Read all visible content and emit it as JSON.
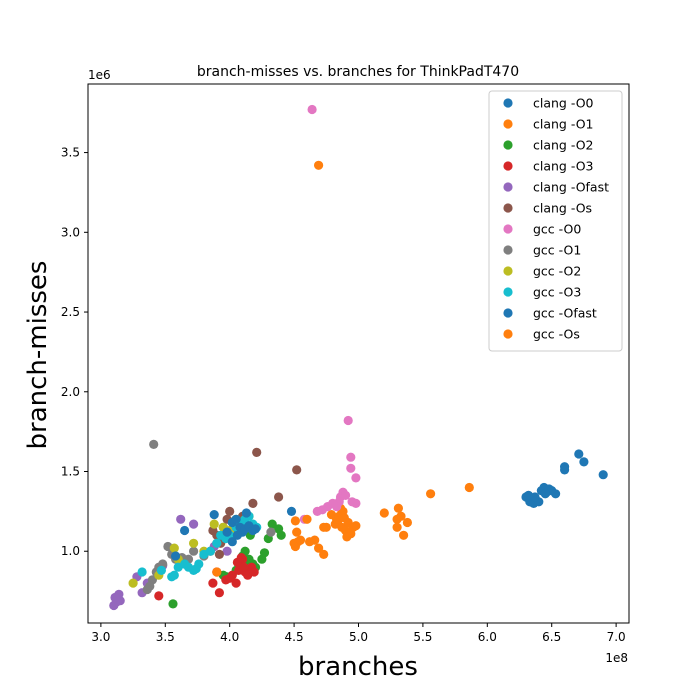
{
  "chart_data": {
    "type": "scatter",
    "title": "branch-misses vs. branches for ThinkPadT470",
    "xlabel": "branches",
    "ylabel": "branch-misses",
    "x_offset_label": "1e8",
    "y_offset_label": "1e6",
    "xlim": [
      2.9,
      7.1
    ],
    "ylim": [
      0.55,
      3.93
    ],
    "xticks": [
      3.0,
      3.5,
      4.0,
      4.5,
      5.0,
      5.5,
      6.0,
      6.5,
      7.0
    ],
    "xtick_labels": [
      "3.0",
      "3.5",
      "4.0",
      "4.5",
      "5.0",
      "5.5",
      "6.0",
      "6.5",
      "7.0"
    ],
    "yticks": [
      1.0,
      1.5,
      2.0,
      2.5,
      3.0,
      3.5
    ],
    "ytick_labels": [
      "1.0",
      "1.5",
      "2.0",
      "2.5",
      "3.0",
      "3.5"
    ],
    "grid": false,
    "legend_position": "top-right",
    "series": [
      {
        "name": "clang -O0",
        "color": "#1f77b4",
        "points": [
          [
            6.3,
            1.34
          ],
          [
            6.33,
            1.31
          ],
          [
            6.35,
            1.33
          ],
          [
            6.36,
            1.3
          ],
          [
            6.38,
            1.32
          ],
          [
            6.4,
            1.31
          ],
          [
            6.42,
            1.38
          ],
          [
            6.44,
            1.4
          ],
          [
            6.46,
            1.37
          ],
          [
            6.48,
            1.39
          ],
          [
            6.5,
            1.38
          ],
          [
            6.53,
            1.36
          ],
          [
            6.6,
            1.53
          ],
          [
            6.6,
            1.51
          ],
          [
            6.71,
            1.61
          ],
          [
            6.75,
            1.56
          ],
          [
            6.9,
            1.48
          ],
          [
            6.32,
            1.35
          ],
          [
            6.37,
            1.34
          ],
          [
            6.45,
            1.36
          ]
        ]
      },
      {
        "name": "clang -O1",
        "color": "#ff7f0e",
        "points": [
          [
            4.69,
            3.42
          ],
          [
            4.79,
            1.23
          ],
          [
            4.82,
            1.17
          ],
          [
            4.83,
            1.2
          ],
          [
            4.85,
            1.22
          ],
          [
            4.87,
            1.15
          ],
          [
            4.88,
            1.25
          ],
          [
            4.9,
            1.13
          ],
          [
            4.92,
            1.18
          ],
          [
            4.94,
            1.11
          ],
          [
            4.96,
            1.15
          ],
          [
            4.98,
            1.16
          ],
          [
            4.84,
            1.19
          ],
          [
            4.86,
            1.27
          ],
          [
            4.89,
            1.21
          ],
          [
            5.2,
            1.24
          ],
          [
            5.3,
            1.2
          ],
          [
            5.31,
            1.27
          ],
          [
            5.33,
            1.22
          ],
          [
            5.38,
            1.18
          ],
          [
            5.35,
            1.1
          ],
          [
            5.3,
            1.15
          ],
          [
            5.56,
            1.36
          ],
          [
            5.86,
            1.4
          ],
          [
            4.91,
            1.09
          ],
          [
            4.75,
            1.15
          ]
        ]
      },
      {
        "name": "clang -O2",
        "color": "#2ca02c",
        "points": [
          [
            3.56,
            0.67
          ],
          [
            3.95,
            0.85
          ],
          [
            3.98,
            0.84
          ],
          [
            4.05,
            0.88
          ],
          [
            4.1,
            0.97
          ],
          [
            4.13,
            0.93
          ],
          [
            4.15,
            0.95
          ],
          [
            4.18,
            0.92
          ],
          [
            4.2,
            0.9
          ],
          [
            4.25,
            0.95
          ],
          [
            4.27,
            0.99
          ],
          [
            4.3,
            1.08
          ],
          [
            4.33,
            1.17
          ],
          [
            4.38,
            1.14
          ],
          [
            4.4,
            1.1
          ],
          [
            4.12,
            1.0
          ],
          [
            4.08,
            0.9
          ],
          [
            4.16,
            1.1
          ]
        ]
      },
      {
        "name": "clang -O3",
        "color": "#d62728",
        "points": [
          [
            3.45,
            0.72
          ],
          [
            3.87,
            0.8
          ],
          [
            3.92,
            0.74
          ],
          [
            3.97,
            0.82
          ],
          [
            4.02,
            0.85
          ],
          [
            4.05,
            0.8
          ],
          [
            4.07,
            0.88
          ],
          [
            4.08,
            0.92
          ],
          [
            4.1,
            0.95
          ],
          [
            4.12,
            0.87
          ],
          [
            4.14,
            0.85
          ],
          [
            4.17,
            0.9
          ],
          [
            4.19,
            0.87
          ],
          [
            4.06,
            0.93
          ],
          [
            4.11,
            0.9
          ],
          [
            4.0,
            0.83
          ],
          [
            3.9,
            0.87
          ],
          [
            4.09,
            0.96
          ]
        ]
      },
      {
        "name": "clang -Ofast",
        "color": "#9467bd",
        "points": [
          [
            3.1,
            0.66
          ],
          [
            3.12,
            0.68
          ],
          [
            3.13,
            0.7
          ],
          [
            3.14,
            0.73
          ],
          [
            3.15,
            0.69
          ],
          [
            3.11,
            0.71
          ],
          [
            3.28,
            0.84
          ],
          [
            3.32,
            0.74
          ],
          [
            3.36,
            0.8
          ],
          [
            3.48,
            0.91
          ],
          [
            3.62,
            1.2
          ],
          [
            3.72,
            1.17
          ],
          [
            3.88,
            1.03
          ],
          [
            3.98,
            1.0
          ]
        ]
      },
      {
        "name": "clang -Os",
        "color": "#8c564b",
        "points": [
          [
            3.87,
            1.13
          ],
          [
            3.9,
            1.1
          ],
          [
            3.93,
            1.05
          ],
          [
            3.95,
            1.15
          ],
          [
            3.98,
            1.2
          ],
          [
            4.0,
            1.25
          ],
          [
            4.03,
            1.18
          ],
          [
            4.05,
            1.14
          ],
          [
            4.08,
            1.12
          ],
          [
            4.12,
            1.16
          ],
          [
            4.18,
            1.3
          ],
          [
            4.21,
            1.62
          ],
          [
            4.38,
            1.34
          ],
          [
            4.52,
            1.51
          ],
          [
            3.85,
            1.0
          ],
          [
            3.92,
            0.98
          ],
          [
            4.1,
            1.22
          ]
        ]
      },
      {
        "name": "gcc -O0",
        "color": "#e377c2",
        "points": [
          [
            4.64,
            3.77
          ],
          [
            4.92,
            1.82
          ],
          [
            4.94,
            1.59
          ],
          [
            4.94,
            1.52
          ],
          [
            4.98,
            1.46
          ],
          [
            4.88,
            1.37
          ],
          [
            4.86,
            1.34
          ],
          [
            4.85,
            1.31
          ],
          [
            4.83,
            1.28
          ],
          [
            4.8,
            1.3
          ],
          [
            4.76,
            1.28
          ],
          [
            4.72,
            1.26
          ],
          [
            4.68,
            1.25
          ],
          [
            4.95,
            1.31
          ],
          [
            4.98,
            1.3
          ],
          [
            4.58,
            1.2
          ],
          [
            4.9,
            1.35
          ]
        ]
      },
      {
        "name": "gcc -O1",
        "color": "#7f7f7f",
        "points": [
          [
            3.41,
            1.67
          ],
          [
            3.4,
            0.82
          ],
          [
            3.43,
            0.87
          ],
          [
            3.45,
            0.9
          ],
          [
            3.48,
            0.92
          ],
          [
            3.52,
            1.03
          ],
          [
            3.55,
            0.98
          ],
          [
            3.58,
            0.95
          ],
          [
            3.63,
            0.96
          ],
          [
            3.68,
            0.95
          ],
          [
            3.72,
            1.0
          ],
          [
            3.8,
            0.97
          ],
          [
            3.9,
            1.05
          ],
          [
            4.32,
            1.12
          ],
          [
            3.38,
            0.78
          ],
          [
            3.36,
            0.76
          ]
        ]
      },
      {
        "name": "gcc -O2",
        "color": "#bcbd22",
        "points": [
          [
            3.25,
            0.8
          ],
          [
            3.45,
            0.85
          ],
          [
            3.57,
            1.02
          ],
          [
            3.6,
            0.95
          ],
          [
            3.72,
            1.05
          ],
          [
            3.88,
            1.17
          ],
          [
            3.95,
            1.15
          ],
          [
            4.0,
            1.13
          ],
          [
            4.05,
            1.2
          ],
          [
            4.1,
            1.18
          ],
          [
            4.15,
            1.22
          ],
          [
            3.8,
            1.0
          ]
        ]
      },
      {
        "name": "gcc -O3",
        "color": "#17becf",
        "points": [
          [
            3.32,
            0.87
          ],
          [
            3.47,
            0.88
          ],
          [
            3.55,
            0.84
          ],
          [
            3.57,
            0.85
          ],
          [
            3.6,
            0.9
          ],
          [
            3.65,
            0.92
          ],
          [
            3.72,
            0.88
          ],
          [
            3.76,
            0.92
          ],
          [
            3.8,
            0.98
          ],
          [
            3.85,
            1.0
          ],
          [
            3.9,
            1.05
          ],
          [
            3.93,
            1.1
          ],
          [
            3.97,
            1.08
          ],
          [
            4.0,
            1.1
          ],
          [
            4.05,
            1.15
          ],
          [
            4.1,
            1.18
          ],
          [
            4.12,
            1.2
          ],
          [
            4.15,
            1.22
          ],
          [
            4.18,
            1.17
          ],
          [
            4.21,
            1.15
          ],
          [
            3.68,
            0.9
          ],
          [
            3.74,
            0.89
          ]
        ]
      },
      {
        "name": "gcc -Ofast",
        "color": "#1f77b4",
        "points": [
          [
            3.58,
            0.97
          ],
          [
            3.65,
            1.13
          ],
          [
            3.88,
            1.23
          ],
          [
            3.98,
            1.12
          ],
          [
            4.02,
            1.18
          ],
          [
            4.05,
            1.2
          ],
          [
            4.08,
            1.15
          ],
          [
            4.1,
            1.12
          ],
          [
            4.12,
            1.14
          ],
          [
            4.15,
            1.16
          ],
          [
            4.18,
            1.13
          ],
          [
            4.13,
            1.24
          ],
          [
            4.48,
            1.25
          ],
          [
            4.06,
            1.1
          ],
          [
            4.02,
            1.06
          ],
          [
            4.2,
            1.14
          ]
        ]
      },
      {
        "name": "gcc -Os",
        "color": "#ff7f0e",
        "points": [
          [
            3.9,
            0.87
          ],
          [
            4.51,
            1.19
          ],
          [
            4.52,
            1.12
          ],
          [
            4.53,
            1.06
          ],
          [
            4.51,
            1.03
          ],
          [
            4.66,
            1.07
          ],
          [
            4.69,
            1.02
          ],
          [
            4.73,
            0.98
          ],
          [
            4.73,
            1.15
          ],
          [
            4.6,
            1.2
          ],
          [
            4.62,
            1.06
          ],
          [
            4.5,
            1.05
          ],
          [
            4.55,
            1.07
          ]
        ]
      }
    ]
  }
}
